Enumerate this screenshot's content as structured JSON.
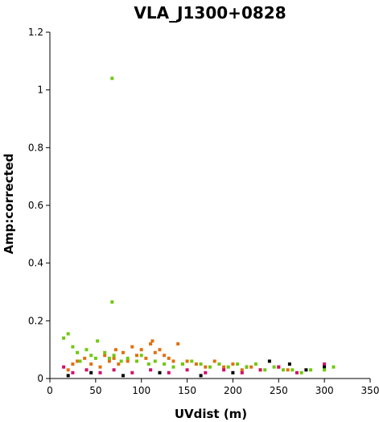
{
  "chart_data": {
    "type": "scatter",
    "title": "VLA_J1300+0828",
    "xlabel": "UVdist (m)",
    "ylabel": "Amp:corrected",
    "xlim": [
      0,
      350
    ],
    "ylim": [
      0,
      1.2
    ],
    "xticks": [
      "0",
      "50",
      "100",
      "150",
      "200",
      "250",
      "300",
      "350"
    ],
    "yticks": [
      "0",
      "0.2",
      "0.4",
      "0.6",
      "0.8",
      "1",
      "1.2"
    ],
    "grid": false,
    "legend": "none",
    "series": [
      {
        "color": "#e07010",
        "points": [
          [
            20,
            0.03
          ],
          [
            25,
            0.05
          ],
          [
            30,
            0.06
          ],
          [
            38,
            0.07
          ],
          [
            45,
            0.05
          ],
          [
            55,
            0.04
          ],
          [
            60,
            0.08
          ],
          [
            65,
            0.06
          ],
          [
            70,
            0.07
          ],
          [
            72,
            0.1
          ],
          [
            75,
            0.05
          ],
          [
            80,
            0.09
          ],
          [
            85,
            0.06
          ],
          [
            90,
            0.11
          ],
          [
            95,
            0.08
          ],
          [
            100,
            0.1
          ],
          [
            105,
            0.07
          ],
          [
            110,
            0.12
          ],
          [
            112,
            0.13
          ],
          [
            115,
            0.09
          ],
          [
            120,
            0.1
          ],
          [
            125,
            0.08
          ],
          [
            130,
            0.07
          ],
          [
            135,
            0.06
          ],
          [
            140,
            0.12
          ],
          [
            145,
            0.05
          ],
          [
            150,
            0.06
          ],
          [
            160,
            0.05
          ],
          [
            170,
            0.04
          ],
          [
            180,
            0.06
          ],
          [
            190,
            0.04
          ],
          [
            200,
            0.05
          ],
          [
            210,
            0.03
          ],
          [
            220,
            0.04
          ],
          [
            230,
            0.03
          ],
          [
            250,
            0.04
          ],
          [
            260,
            0.03
          ]
        ]
      },
      {
        "color": "#d0106a",
        "points": [
          [
            15,
            0.04
          ],
          [
            25,
            0.02
          ],
          [
            40,
            0.03
          ],
          [
            55,
            0.02
          ],
          [
            70,
            0.03
          ],
          [
            90,
            0.02
          ],
          [
            110,
            0.03
          ],
          [
            130,
            0.02
          ],
          [
            150,
            0.03
          ],
          [
            170,
            0.02
          ],
          [
            190,
            0.03
          ],
          [
            210,
            0.02
          ],
          [
            230,
            0.03
          ],
          [
            250,
            0.04
          ],
          [
            270,
            0.02
          ],
          [
            300,
            0.05
          ]
        ]
      },
      {
        "color": "#000000",
        "points": [
          [
            20,
            0.01
          ],
          [
            45,
            0.02
          ],
          [
            80,
            0.01
          ],
          [
            120,
            0.02
          ],
          [
            165,
            0.01
          ],
          [
            200,
            0.02
          ],
          [
            215,
            0.04
          ],
          [
            240,
            0.06
          ],
          [
            262,
            0.05
          ],
          [
            280,
            0.03
          ],
          [
            300,
            0.04
          ]
        ]
      },
      {
        "color": "#70c810",
        "points": [
          [
            68,
            1.04
          ],
          [
            68,
            0.265
          ],
          [
            15,
            0.14
          ],
          [
            20,
            0.155
          ],
          [
            25,
            0.11
          ],
          [
            30,
            0.09
          ],
          [
            33,
            0.06
          ],
          [
            40,
            0.1
          ],
          [
            45,
            0.08
          ],
          [
            50,
            0.07
          ],
          [
            52,
            0.13
          ],
          [
            60,
            0.09
          ],
          [
            65,
            0.07
          ],
          [
            70,
            0.08
          ],
          [
            78,
            0.06
          ],
          [
            85,
            0.07
          ],
          [
            95,
            0.06
          ],
          [
            100,
            0.08
          ],
          [
            108,
            0.05
          ],
          [
            115,
            0.06
          ],
          [
            125,
            0.05
          ],
          [
            135,
            0.04
          ],
          [
            145,
            0.05
          ],
          [
            155,
            0.06
          ],
          [
            165,
            0.05
          ],
          [
            175,
            0.04
          ],
          [
            185,
            0.05
          ],
          [
            195,
            0.04
          ],
          [
            205,
            0.05
          ],
          [
            215,
            0.04
          ],
          [
            225,
            0.05
          ],
          [
            235,
            0.03
          ],
          [
            245,
            0.04
          ],
          [
            255,
            0.03
          ],
          [
            265,
            0.03
          ],
          [
            275,
            0.02
          ],
          [
            285,
            0.03
          ],
          [
            300,
            0.03
          ],
          [
            310,
            0.04
          ]
        ]
      }
    ]
  }
}
